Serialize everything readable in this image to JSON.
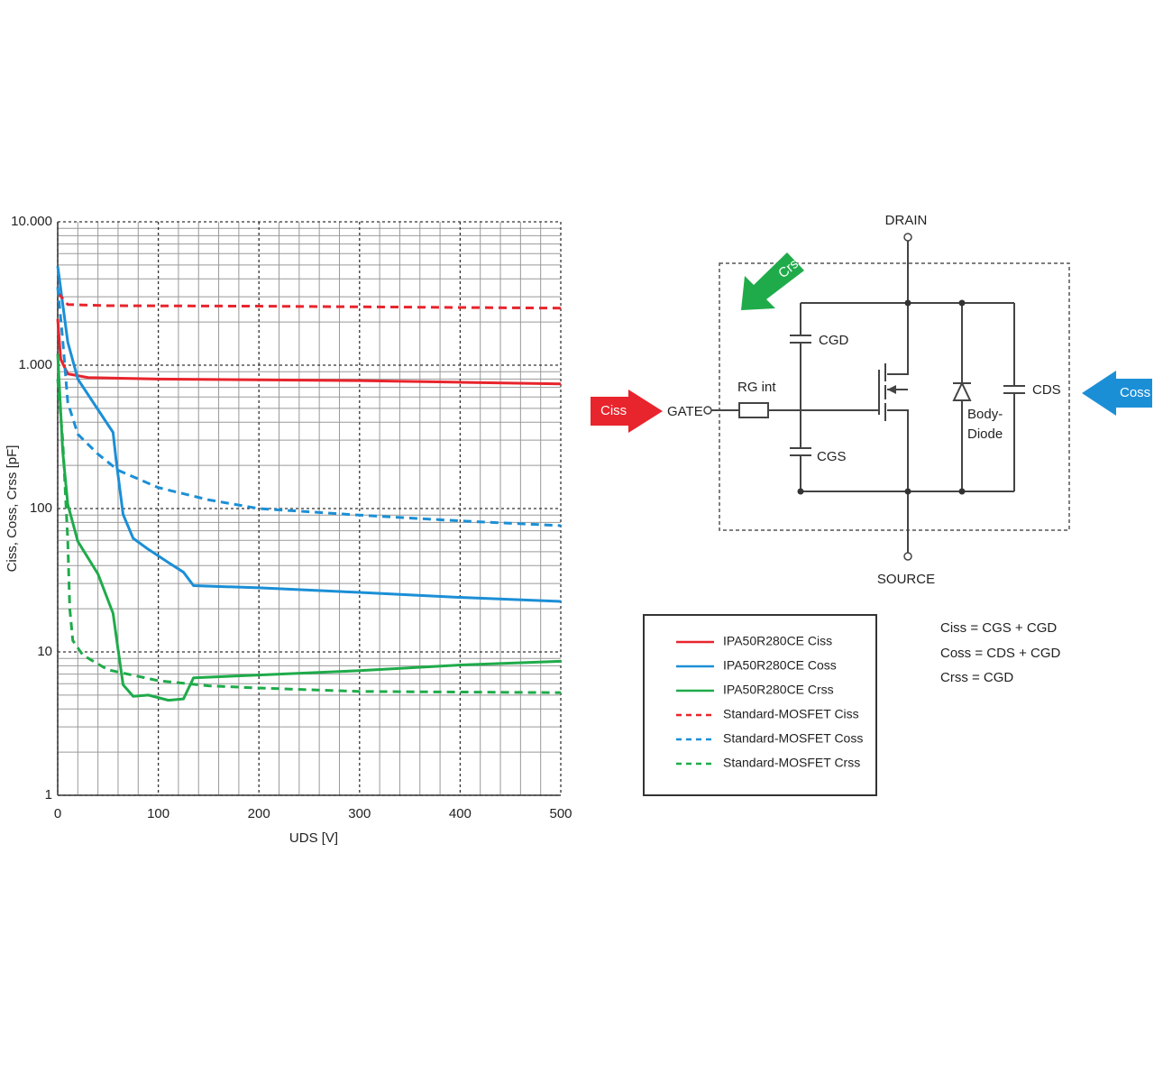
{
  "chart_data": {
    "type": "line",
    "y_label": "Ciss, Coss, Crss [pF]",
    "x_label": "UDS [V]",
    "xlim": [
      0,
      500
    ],
    "xticks": [
      0,
      100,
      200,
      300,
      400,
      500
    ],
    "ylim": [
      1,
      10000
    ],
    "yscale": "log",
    "yticks": [
      1,
      10,
      100,
      {
        "value": 1000,
        "label": "1.000"
      },
      {
        "value": 10000,
        "label": "10.000"
      }
    ],
    "grid": true,
    "series": [
      {
        "name": "IPA50R280CE Ciss",
        "color": "#e8242c",
        "linestyle": "solid",
        "x": [
          0,
          3,
          10,
          30,
          100,
          200,
          300,
          400,
          500
        ],
        "values": [
          2100,
          1100,
          870,
          820,
          800,
          790,
          780,
          760,
          740
        ]
      },
      {
        "name": "IPA50R280CE Coss",
        "color": "#1b8fd6",
        "linestyle": "solid",
        "x": [
          0,
          10,
          20,
          40,
          55,
          58,
          65,
          75,
          90,
          110,
          125,
          135,
          200,
          300,
          400,
          500
        ],
        "values": [
          4900,
          1450,
          800,
          490,
          340,
          220,
          91,
          62,
          52,
          42,
          36,
          29,
          28,
          26,
          24,
          22.5
        ]
      },
      {
        "name": "IPA50R280CE Crss",
        "color": "#1fab4a",
        "linestyle": "solid",
        "x": [
          0,
          5,
          10,
          20,
          40,
          55,
          60,
          65,
          75,
          90,
          110,
          125,
          135,
          200,
          300,
          400,
          500
        ],
        "values": [
          1200,
          250,
          107,
          59,
          35,
          18.6,
          10.4,
          5.9,
          4.9,
          5.0,
          4.6,
          4.7,
          6.6,
          6.9,
          7.4,
          8.1,
          8.6
        ]
      },
      {
        "name": "Standard-MOSFET Ciss",
        "color": "#e8242c",
        "linestyle": "dashed",
        "x": [
          0,
          10,
          50,
          200,
          500
        ],
        "values": [
          3200,
          2650,
          2600,
          2580,
          2500
        ]
      },
      {
        "name": "Standard-MOSFET Coss",
        "color": "#1b8fd6",
        "linestyle": "dashed",
        "x": [
          0,
          5,
          10,
          20,
          40,
          60,
          100,
          150,
          200,
          300,
          400,
          500
        ],
        "values": [
          3500,
          1500,
          550,
          330,
          240,
          185,
          140,
          115,
          100,
          90,
          82,
          76
        ]
      },
      {
        "name": "Standard-MOSFET Crss",
        "color": "#1fab4a",
        "linestyle": "dashed",
        "x": [
          0,
          5,
          10,
          12,
          15,
          25,
          50,
          100,
          150,
          200,
          300,
          500
        ],
        "values": [
          800,
          300,
          60,
          20,
          12,
          9.5,
          7.5,
          6.3,
          5.8,
          5.6,
          5.3,
          5.2
        ]
      }
    ]
  },
  "diagram": {
    "drain": "DRAIN",
    "source": "SOURCE",
    "gate": "GATE",
    "resistor": "RG int",
    "cgd": "CGD",
    "cgs": "CGS",
    "cds": "CDS",
    "diode": [
      "Body-",
      "Diode"
    ],
    "arrow_ciss": "Ciss",
    "arrow_coss": "Coss",
    "arrow_crss": "Crss",
    "equations": [
      "Ciss = CGS + CGD",
      "Coss = CDS + CGD",
      "Crss = CGD"
    ]
  }
}
